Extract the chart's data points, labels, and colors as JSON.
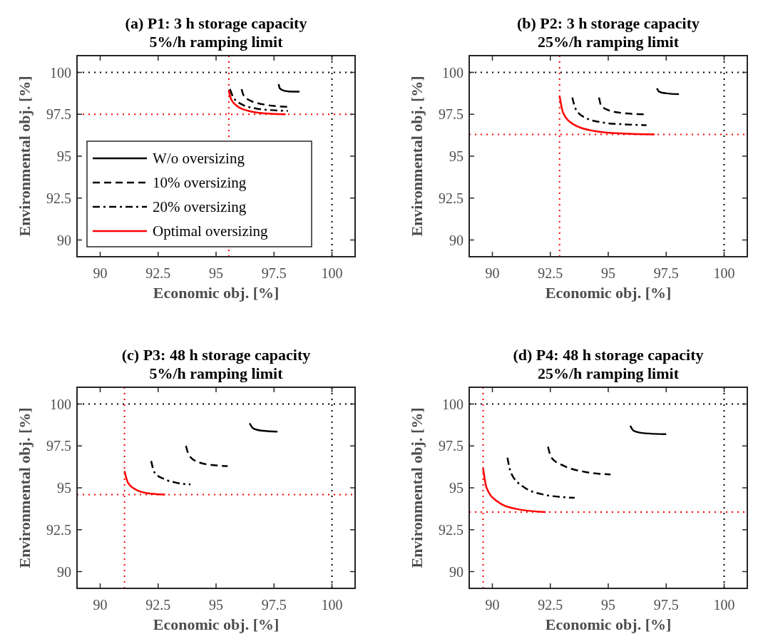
{
  "chart_data": [
    {
      "type": "line",
      "title": "(a) P1: 3 h storage capacity",
      "subtitle": "5%/h ramping limit",
      "xlabel": "Economic obj. [%]",
      "ylabel": "Environmental obj. [%]",
      "xlim": [
        89,
        101
      ],
      "ylim": [
        89,
        101
      ],
      "xticks": [
        90,
        92.5,
        95,
        97.5,
        100
      ],
      "yticks": [
        90,
        92.5,
        95,
        97.5,
        100
      ],
      "legend": "bottom left",
      "series": [
        {
          "name": "W/o oversizing",
          "color": "#000000",
          "line_style": "solid",
          "x": [
            97.7,
            97.75,
            97.95,
            98.3,
            98.6
          ],
          "values": [
            99.3,
            99.05,
            98.9,
            98.85,
            98.85
          ]
        },
        {
          "name": "10% oversizing",
          "color": "#000000",
          "line_style": "dashed",
          "x": [
            96.1,
            96.2,
            96.5,
            97.0,
            97.5,
            98.1
          ],
          "values": [
            99.0,
            98.6,
            98.3,
            98.1,
            98.0,
            97.95
          ]
        },
        {
          "name": "20% oversizing",
          "color": "#000000",
          "line_style": "dashdot",
          "x": [
            95.6,
            95.75,
            96.1,
            96.7,
            97.4,
            98.1
          ],
          "values": [
            99.0,
            98.5,
            98.1,
            97.85,
            97.75,
            97.7
          ]
        },
        {
          "name": "Optimal oversizing",
          "color": "#ff0000",
          "line_style": "solid",
          "x": [
            95.55,
            95.65,
            95.9,
            96.4,
            97.1,
            98.0
          ],
          "values": [
            98.9,
            98.4,
            98.0,
            97.7,
            97.55,
            97.5
          ]
        }
      ],
      "ref_lines": [
        {
          "axis": "x",
          "value": 100,
          "color": "#000000",
          "line_style": "dotted"
        },
        {
          "axis": "y",
          "value": 100,
          "color": "#000000",
          "line_style": "dotted"
        },
        {
          "axis": "x",
          "value": 95.55,
          "color": "#ff0000",
          "line_style": "dotted"
        },
        {
          "axis": "y",
          "value": 97.5,
          "color": "#ff0000",
          "line_style": "dotted"
        }
      ]
    },
    {
      "type": "line",
      "title": "(b) P2: 3 h storage capacity",
      "subtitle": "25%/h ramping limit",
      "xlabel": "Economic obj. [%]",
      "ylabel": "Environmental obj. [%]",
      "xlim": [
        89,
        101
      ],
      "ylim": [
        89,
        101
      ],
      "xticks": [
        90,
        92.5,
        95,
        97.5,
        100
      ],
      "yticks": [
        90,
        92.5,
        95,
        97.5,
        100
      ],
      "series": [
        {
          "color": "#000000",
          "line_style": "solid",
          "x": [
            97.1,
            97.2,
            97.5,
            98.05
          ],
          "values": [
            99.05,
            98.85,
            98.75,
            98.7
          ]
        },
        {
          "color": "#000000",
          "line_style": "dashed",
          "x": [
            94.6,
            94.7,
            95.1,
            95.8,
            96.6
          ],
          "values": [
            98.5,
            98.0,
            97.7,
            97.55,
            97.5
          ]
        },
        {
          "color": "#000000",
          "line_style": "dashdot",
          "x": [
            93.45,
            93.6,
            94.0,
            94.8,
            95.7,
            96.65
          ],
          "values": [
            98.5,
            97.8,
            97.3,
            97.0,
            96.9,
            96.85
          ]
        },
        {
          "color": "#ff0000",
          "line_style": "solid",
          "x": [
            92.9,
            93.05,
            93.5,
            94.4,
            95.6,
            97.0
          ],
          "values": [
            98.6,
            97.6,
            96.9,
            96.5,
            96.35,
            96.3
          ]
        }
      ],
      "ref_lines": [
        {
          "axis": "x",
          "value": 100,
          "color": "#000000",
          "line_style": "dotted"
        },
        {
          "axis": "y",
          "value": 100,
          "color": "#000000",
          "line_style": "dotted"
        },
        {
          "axis": "x",
          "value": 92.9,
          "color": "#ff0000",
          "line_style": "dotted"
        },
        {
          "axis": "y",
          "value": 96.3,
          "color": "#ff0000",
          "line_style": "dotted"
        }
      ]
    },
    {
      "type": "line",
      "title": "(c) P3: 48 h storage capacity",
      "subtitle": "5%/h ramping limit",
      "xlabel": "Economic obj. [%]",
      "ylabel": "Environmental obj. [%]",
      "xlim": [
        89,
        101
      ],
      "ylim": [
        89,
        101
      ],
      "xticks": [
        90,
        92.5,
        95,
        97.5,
        100
      ],
      "yticks": [
        90,
        92.5,
        95,
        97.5,
        100
      ],
      "series": [
        {
          "color": "#000000",
          "line_style": "solid",
          "x": [
            96.45,
            96.6,
            97.0,
            97.65
          ],
          "values": [
            98.85,
            98.55,
            98.4,
            98.35
          ]
        },
        {
          "color": "#000000",
          "line_style": "dashed",
          "x": [
            93.7,
            93.85,
            94.3,
            94.9,
            95.5
          ],
          "values": [
            97.5,
            96.9,
            96.5,
            96.35,
            96.3
          ]
        },
        {
          "color": "#000000",
          "line_style": "dashdot",
          "x": [
            92.2,
            92.35,
            92.8,
            93.3,
            93.9
          ],
          "values": [
            96.6,
            95.9,
            95.5,
            95.3,
            95.2
          ]
        },
        {
          "color": "#ff0000",
          "line_style": "solid",
          "x": [
            91.05,
            91.2,
            91.6,
            92.2,
            92.8
          ],
          "values": [
            96.0,
            95.3,
            94.85,
            94.65,
            94.6
          ]
        }
      ],
      "ref_lines": [
        {
          "axis": "x",
          "value": 100,
          "color": "#000000",
          "line_style": "dotted"
        },
        {
          "axis": "y",
          "value": 100,
          "color": "#000000",
          "line_style": "dotted"
        },
        {
          "axis": "x",
          "value": 91.05,
          "color": "#ff0000",
          "line_style": "dotted"
        },
        {
          "axis": "y",
          "value": 94.6,
          "color": "#ff0000",
          "line_style": "dotted"
        }
      ]
    },
    {
      "type": "line",
      "title": "(d) P4: 48 h storage capacity",
      "subtitle": "25%/h ramping limit",
      "xlabel": "Economic obj. [%]",
      "ylabel": "Environmental obj. [%]",
      "xlim": [
        89,
        101
      ],
      "ylim": [
        89,
        101
      ],
      "xticks": [
        90,
        92.5,
        95,
        97.5,
        100
      ],
      "yticks": [
        90,
        92.5,
        95,
        97.5,
        100
      ],
      "series": [
        {
          "color": "#000000",
          "line_style": "solid",
          "x": [
            95.95,
            96.1,
            96.6,
            97.5
          ],
          "values": [
            98.7,
            98.4,
            98.25,
            98.2
          ]
        },
        {
          "color": "#000000",
          "line_style": "dashed",
          "x": [
            92.4,
            92.55,
            93.1,
            94.0,
            95.1
          ],
          "values": [
            97.45,
            96.8,
            96.3,
            95.95,
            95.8
          ]
        },
        {
          "color": "#000000",
          "line_style": "dashdot",
          "x": [
            90.65,
            90.8,
            91.3,
            92.2,
            93.55
          ],
          "values": [
            96.8,
            95.9,
            95.1,
            94.6,
            94.4
          ]
        },
        {
          "color": "#ff0000",
          "line_style": "solid",
          "x": [
            89.6,
            89.75,
            90.2,
            91.0,
            92.3
          ],
          "values": [
            96.15,
            95.0,
            94.2,
            93.75,
            93.55
          ]
        }
      ],
      "ref_lines": [
        {
          "axis": "x",
          "value": 100,
          "color": "#000000",
          "line_style": "dotted"
        },
        {
          "axis": "y",
          "value": 100,
          "color": "#000000",
          "line_style": "dotted"
        },
        {
          "axis": "x",
          "value": 89.6,
          "color": "#ff0000",
          "line_style": "dotted"
        },
        {
          "axis": "y",
          "value": 93.55,
          "color": "#ff0000",
          "line_style": "dotted"
        }
      ]
    }
  ]
}
